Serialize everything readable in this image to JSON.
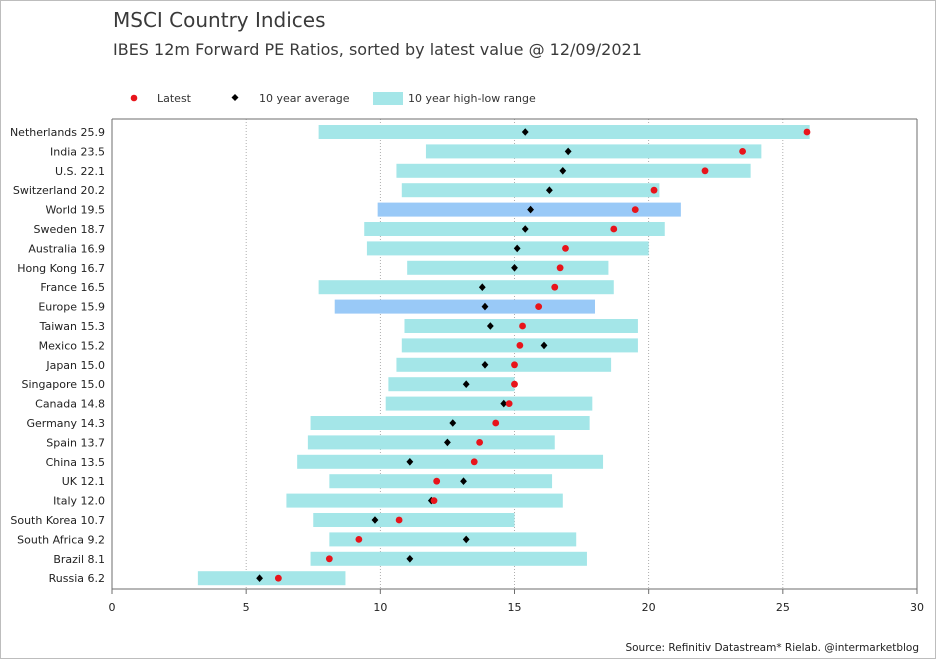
{
  "chart_data": {
    "type": "range-dot",
    "title": "MSCI Country Indices",
    "subtitle": "IBES 12m Forward PE Ratios, sorted by latest value @ 12/09/2021",
    "source": "Source: Refinitiv Datastream* Rielab. @intermarketblog",
    "xlim": [
      0,
      30
    ],
    "xticks": [
      "0",
      "5",
      "10",
      "15",
      "20",
      "25",
      "30"
    ],
    "grid": "vertical-dotted",
    "legend_position": "top",
    "legend": [
      {
        "label": "Latest",
        "kind": "dot",
        "color": "#e8141b"
      },
      {
        "label": "10 year average",
        "kind": "diamond",
        "color": "#000000"
      },
      {
        "label": "10 year high-low range",
        "kind": "bar",
        "color": "#a4e6e8"
      }
    ],
    "colors": {
      "range": "#a4e6e8",
      "range_highlight": "#99c9f7",
      "latest": "#e8141b",
      "average": "#000000"
    },
    "categories": [
      "Netherlands 25.9",
      "India 23.5",
      "U.S. 22.1",
      "Switzerland 20.2",
      "World 19.5",
      "Sweden 18.7",
      "Australia 16.9",
      "Hong Kong 16.7",
      "France 16.5",
      "Europe 15.9",
      "Taiwan 15.3",
      "Mexico 15.2",
      "Japan 15.0",
      "Singapore 15.0",
      "Canada 14.8",
      "Germany 14.3",
      "Spain 13.7",
      "China 13.5",
      "UK 12.1",
      "Italy 12.0",
      "South Korea 10.7",
      "South Africa 9.2",
      "Brazil 8.1",
      "Russia 6.2"
    ],
    "latest": [
      25.9,
      23.5,
      22.1,
      20.2,
      19.5,
      18.7,
      16.9,
      16.7,
      16.5,
      15.9,
      15.3,
      15.2,
      15.0,
      15.0,
      14.8,
      14.3,
      13.7,
      13.5,
      12.1,
      12.0,
      10.7,
      9.2,
      8.1,
      6.2
    ],
    "average": [
      15.4,
      17.0,
      16.8,
      16.3,
      15.6,
      15.4,
      15.1,
      15.0,
      13.8,
      13.9,
      14.1,
      16.1,
      13.9,
      13.2,
      14.6,
      12.7,
      12.5,
      11.1,
      13.1,
      11.9,
      9.8,
      13.2,
      11.1,
      5.5
    ],
    "low": [
      7.7,
      11.7,
      10.6,
      10.8,
      9.9,
      9.4,
      9.5,
      11.0,
      7.7,
      8.3,
      10.9,
      10.8,
      10.6,
      10.3,
      10.2,
      7.4,
      7.3,
      6.9,
      8.1,
      6.5,
      7.5,
      8.1,
      7.4,
      3.2
    ],
    "high": [
      26.0,
      24.2,
      23.8,
      20.4,
      21.2,
      20.6,
      20.0,
      18.5,
      18.7,
      18.0,
      19.6,
      19.6,
      18.6,
      15.0,
      17.9,
      17.8,
      16.5,
      18.3,
      16.4,
      16.8,
      15.0,
      17.3,
      17.7,
      8.7
    ],
    "highlighted": [
      "World 19.5",
      "Europe 15.9"
    ]
  }
}
